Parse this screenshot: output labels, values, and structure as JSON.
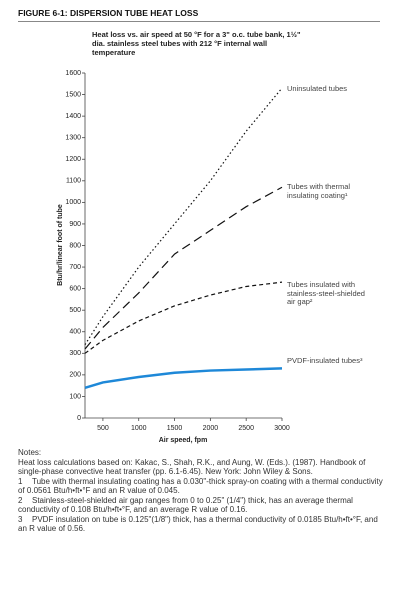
{
  "chart_data": {
    "type": "line",
    "title": "FIGURE 6-1: DISPERSION TUBE HEAT LOSS",
    "subtitle": "Heat loss vs. air speed at 50 °F for a 3\" o.c. tube bank, 1½\" dia. stainless steel tubes with 212 °F internal wall temperature",
    "xlabel": "Air speed, fpm",
    "ylabel": "Btu/hr/linear foot of tube",
    "x": [
      250,
      500,
      1000,
      1500,
      2000,
      2500,
      3000
    ],
    "series": [
      {
        "name": "Uninsulated tubes",
        "color": "#111111",
        "linestyle": "dotted",
        "values": [
          340,
          470,
          700,
          900,
          1100,
          1330,
          1530
        ]
      },
      {
        "name": "Tubes with thermal insulating coating¹",
        "color": "#111111",
        "linestyle": "dashed",
        "values": [
          320,
          420,
          580,
          760,
          870,
          980,
          1070
        ]
      },
      {
        "name": "Tubes insulated with stainless-steel-shielded air gap²",
        "color": "#111111",
        "linestyle": "shortdash",
        "values": [
          300,
          360,
          450,
          520,
          570,
          610,
          630
        ]
      },
      {
        "name": "PVDF-insulated tubes³",
        "color": "#1e88d8",
        "linestyle": "solid",
        "values": [
          140,
          165,
          190,
          210,
          220,
          225,
          230
        ]
      }
    ],
    "xlim": [
      250,
      3000
    ],
    "xticks": [
      500,
      1000,
      1500,
      2000,
      2500,
      3000
    ],
    "ylim": [
      0,
      1600
    ],
    "yticks": [
      0,
      100,
      200,
      300,
      400,
      500,
      600,
      700,
      800,
      900,
      1000,
      1100,
      1200,
      1300,
      1400,
      1500,
      1600
    ],
    "grid": false
  },
  "notes": {
    "heading": "Notes:",
    "source": "Heat loss calculations based on: Kakac, S., Shah, R.K., and Aung, W. (Eds.). (1987). Handbook of single-phase convective heat transfer (pp. 6.1-6.45). New York: John Wiley & Sons.",
    "items": [
      {
        "number": "1",
        "text": "Tube with thermal insulating coating has a 0.030\"-thick spray-on coating with a thermal conductivity of 0.0561 Btu/h•ft•°F and an R value of 0.045."
      },
      {
        "number": "2",
        "text": "Stainless-steel-shielded air gap ranges from 0 to 0.25\" (1/4\") thick, has an average thermal conductivity of 0.108 Btu/h•ft•°F, and an average R value of 0.16."
      },
      {
        "number": "3",
        "text": "PVDF insulation on tube is 0.125\"(1/8\") thick, has a thermal conductivity of 0.0185 Btu/h•ft•°F, and an R value of 0.56."
      }
    ]
  }
}
